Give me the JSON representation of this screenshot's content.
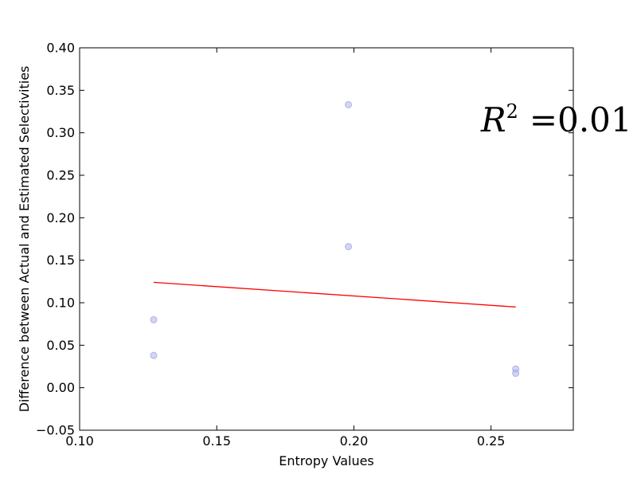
{
  "chart_data": {
    "type": "scatter",
    "xlabel": "Entropy Values",
    "ylabel": "Difference between Actual and Estimated Selectivities",
    "xlim": [
      0.1,
      0.28
    ],
    "ylim": [
      -0.05,
      0.4
    ],
    "x_ticks": [
      0.1,
      0.15,
      0.2,
      0.25
    ],
    "x_tick_labels": [
      "0.10",
      "0.15",
      "0.20",
      "0.25"
    ],
    "y_ticks": [
      -0.05,
      0.0,
      0.05,
      0.1,
      0.15,
      0.2,
      0.25,
      0.3,
      0.35,
      0.4
    ],
    "y_tick_labels": [
      "−0.05",
      "0.00",
      "0.05",
      "0.10",
      "0.15",
      "0.20",
      "0.25",
      "0.30",
      "0.35",
      "0.40"
    ],
    "grid": false,
    "series": [
      {
        "kind": "scatter",
        "color": "#b8b8f0",
        "edge_color": "#8c8ce0",
        "points": [
          {
            "x": 0.127,
            "y": 0.08
          },
          {
            "x": 0.127,
            "y": 0.038
          },
          {
            "x": 0.198,
            "y": 0.333
          },
          {
            "x": 0.198,
            "y": 0.166
          },
          {
            "x": 0.259,
            "y": 0.022
          },
          {
            "x": 0.259,
            "y": 0.017
          }
        ]
      },
      {
        "kind": "line",
        "color": "#ff0000",
        "points": [
          {
            "x": 0.127,
            "y": 0.124
          },
          {
            "x": 0.259,
            "y": 0.095
          }
        ]
      }
    ],
    "annotation": {
      "symbol": "R",
      "exponent": "2",
      "equals": "=",
      "value": "0.01"
    }
  }
}
